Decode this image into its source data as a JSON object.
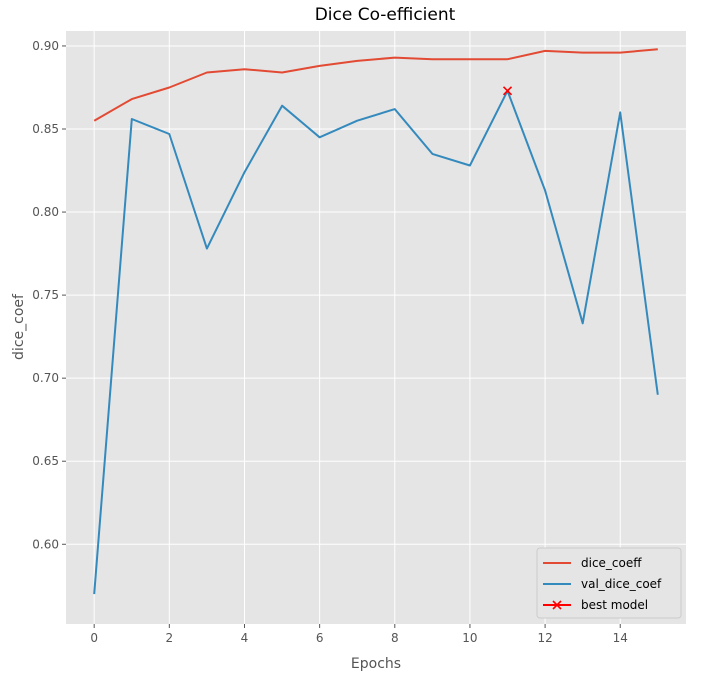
{
  "chart_data": {
    "type": "line",
    "title": "Dice Co-efficient",
    "xlabel": "Epochs",
    "ylabel": "dice_coef",
    "xlim": [
      -0.75,
      15.75
    ],
    "ylim": [
      0.552,
      0.909
    ],
    "xticks": [
      0,
      2,
      4,
      6,
      8,
      10,
      12,
      14
    ],
    "yticks": [
      0.6,
      0.65,
      0.7,
      0.75,
      0.8,
      0.85,
      0.9
    ],
    "ytick_labels": [
      "0.60",
      "0.65",
      "0.70",
      "0.75",
      "0.80",
      "0.85",
      "0.90"
    ],
    "x": [
      0,
      1,
      2,
      3,
      4,
      5,
      6,
      7,
      8,
      9,
      10,
      11,
      12,
      13,
      14,
      15
    ],
    "series": [
      {
        "name": "dice_coeff",
        "color": "#E24A33",
        "values": [
          0.855,
          0.868,
          0.875,
          0.884,
          0.886,
          0.884,
          0.888,
          0.891,
          0.893,
          0.892,
          0.892,
          0.892,
          0.897,
          0.896,
          0.896,
          0.898
        ]
      },
      {
        "name": "val_dice_coef",
        "color": "#348ABD",
        "values": [
          0.57,
          0.856,
          0.847,
          0.778,
          0.824,
          0.864,
          0.845,
          0.855,
          0.862,
          0.835,
          0.828,
          0.873,
          0.813,
          0.733,
          0.86,
          0.69
        ]
      }
    ],
    "best_model": {
      "name": "best model",
      "x": 11,
      "y": 0.873,
      "color": "#FF0000",
      "marker": "x"
    },
    "grid": true,
    "background": "#E5E5E5",
    "legend_position": "lower-right"
  }
}
